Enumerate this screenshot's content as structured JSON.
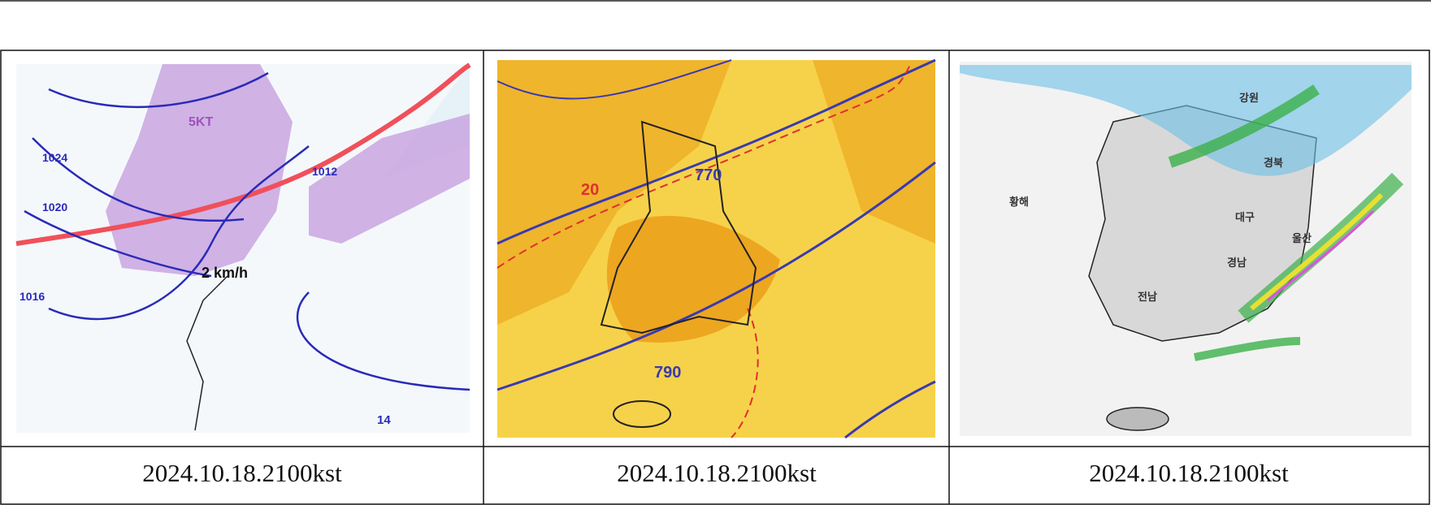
{
  "table": {
    "cells": [
      {
        "caption": "2024.10.18.2100kst",
        "map_labels": [
          "1024",
          "1020",
          "1016",
          "1012",
          "14",
          "5KT",
          "2 km/h"
        ]
      },
      {
        "caption": "2024.10.18.2100kst",
        "map_labels": [
          "770",
          "790",
          "20"
        ]
      },
      {
        "caption": "2024.10.18.2100kst",
        "map_labels": [
          "강원",
          "황해",
          "경북",
          "대구",
          "경남",
          "전남",
          "울산"
        ]
      }
    ]
  }
}
